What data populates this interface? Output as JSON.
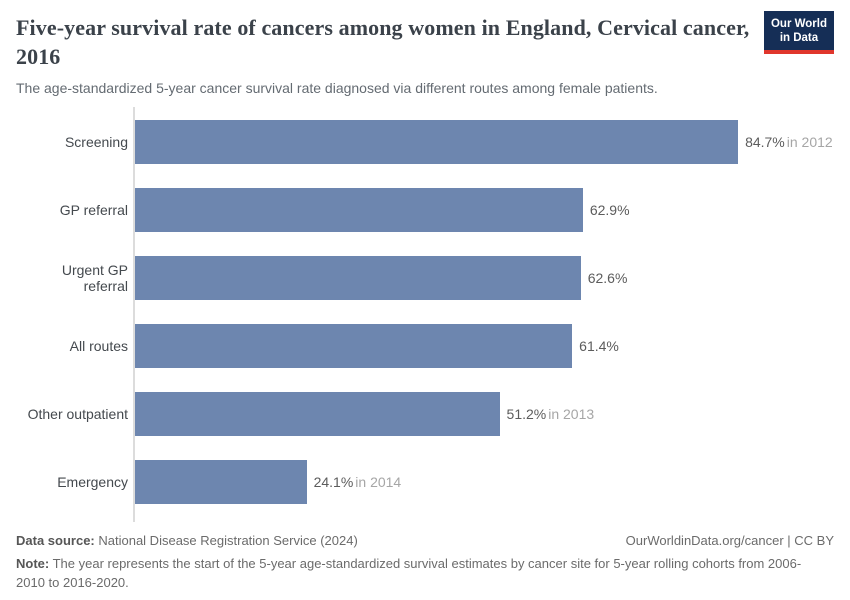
{
  "header": {
    "title": "Five-year survival rate of cancers among women in England, Cervical cancer, 2016",
    "subtitle": "The age-standardized 5-year cancer survival rate diagnosed via different routes among female patients.",
    "logo": {
      "line1": "Our World",
      "line2": "in Data"
    }
  },
  "chart_data": {
    "type": "bar",
    "orientation": "horizontal",
    "title": "Five-year survival rate of cancers among women in England, Cervical cancer, 2016",
    "subtitle": "The age-standardized 5-year cancer survival rate diagnosed via different routes among female patients.",
    "categories": [
      "Screening",
      "GP referral",
      "Urgent GP referral",
      "All routes",
      "Other outpatient",
      "Emergency"
    ],
    "values": [
      84.7,
      62.9,
      62.6,
      61.4,
      51.2,
      24.1
    ],
    "value_labels": [
      "84.7%",
      "62.9%",
      "62.6%",
      "61.4%",
      "51.2%",
      "24.1%"
    ],
    "year_notes": [
      "in 2012",
      "",
      "",
      "",
      "in 2013",
      "in 2014"
    ],
    "unit": "%",
    "xlim": [
      0,
      100
    ],
    "grid": false,
    "legend": false,
    "bar_color": "#6d86af"
  },
  "footer": {
    "source_label": "Data source:",
    "source_text": "National Disease Registration Service (2024)",
    "credit": "OurWorldinData.org/cancer | CC BY",
    "note_label": "Note:",
    "note_text": "The year represents the start of the 5-year age-standardized survival estimates by cancer site for 5-year rolling cohorts from 2006-2010 to 2016-2020."
  },
  "colors": {
    "bar_color": "#6d86af",
    "logo_navy": "#152e56",
    "logo_red": "#e0362c",
    "axis_gray": "#dcdcdc"
  }
}
